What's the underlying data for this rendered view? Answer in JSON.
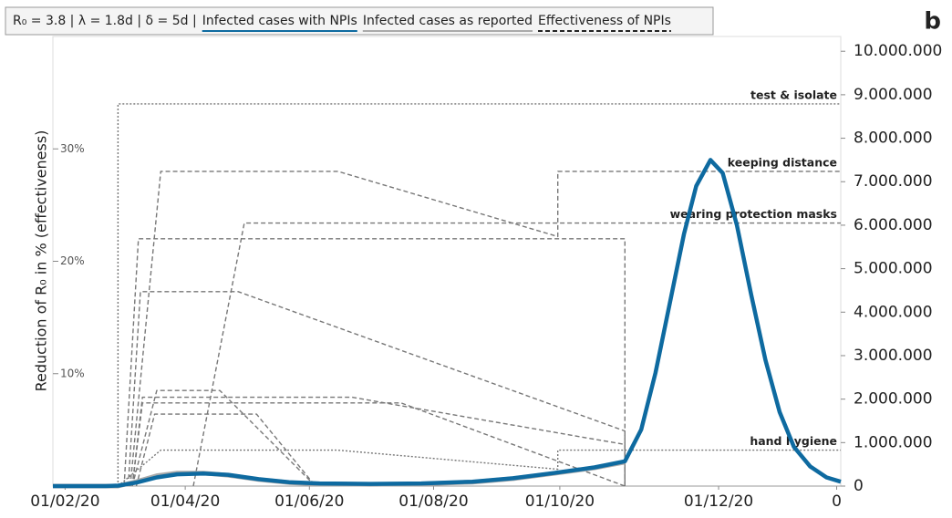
{
  "chart_data": {
    "type": "line",
    "panel_label": "b",
    "params": "R₀ = 3.8 | λ = 1.8d | δ = 5d |",
    "legend": [
      {
        "label": "Infected cases with NPIs",
        "color": "#0e6aa0",
        "dash": "solid"
      },
      {
        "label": "Infected cases as reported",
        "color": "#aaaaaa",
        "dash": "solid"
      },
      {
        "label": "Effectiveness of NPIs",
        "color": "#222222",
        "dash": "dashed"
      }
    ],
    "ylabel": "Reduction of R₀ in % (effectiveness)",
    "xlim": [
      -6,
      381
    ],
    "xticks": [
      {
        "value": 0,
        "label": "01/02/20"
      },
      {
        "value": 59,
        "label": "01/04/20"
      },
      {
        "value": 120,
        "label": "01/06/20"
      },
      {
        "value": 181,
        "label": "01/08/20"
      },
      {
        "value": 243,
        "label": "01/10/20"
      },
      {
        "value": 321,
        "label": "01/12/20"
      },
      {
        "value": 379,
        "label": "0"
      }
    ],
    "ylim": [
      0,
      40
    ],
    "yticks": [
      {
        "value": 10,
        "label": "10%"
      },
      {
        "value": 20,
        "label": "20%"
      },
      {
        "value": 30,
        "label": "30%"
      }
    ],
    "y2lim": [
      0,
      10340000
    ],
    "y2ticks": [
      0,
      {
        "value": 1000000,
        "label": "1.000.000"
      },
      {
        "value": 2000000,
        "label": "2.000.000"
      },
      {
        "value": 3000000,
        "label": "3.000.000"
      },
      {
        "value": 4000000,
        "label": "4.000.000"
      },
      {
        "value": 5000000,
        "label": "5.000.000"
      },
      {
        "value": 6000000,
        "label": "6.000.000"
      },
      {
        "value": 7000000,
        "label": "7.000.000"
      },
      {
        "value": 8000000,
        "label": "8.000.000"
      },
      {
        "value": 9000000,
        "label": "9.000.000"
      },
      {
        "value": 10000000,
        "label": "10.000.000"
      }
    ],
    "series": [
      {
        "name": "test & isolate",
        "color": "#777777",
        "dash": "dotted",
        "x": [
          26,
          26,
          381
        ],
        "values": [
          0,
          34,
          34
        ]
      },
      {
        "name": "keeping distance",
        "color": "#777777",
        "dash": "dashed",
        "x": [
          32,
          47,
          134,
          242,
          242,
          381
        ],
        "values": [
          0,
          28,
          28,
          22.2,
          28,
          28
        ]
      },
      {
        "name": "wearing protection masks",
        "color": "#777777",
        "dash": "dashed",
        "x": [
          63,
          88,
          381
        ],
        "values": [
          0,
          23.4,
          23.4
        ]
      },
      {
        "name": "hand hygiene",
        "color": "#777777",
        "dash": "dotted",
        "x": [
          26,
          47,
          134,
          242,
          242,
          381
        ],
        "values": [
          0,
          3.2,
          3.2,
          1.5,
          3.2,
          3.2
        ]
      },
      {
        "color": "#777777",
        "dash": "dashed",
        "x": [
          29,
          36,
          275,
          275
        ],
        "values": [
          0,
          22,
          22,
          0
        ]
      },
      {
        "color": "#777777",
        "dash": "dashed",
        "x": [
          31,
          37,
          85,
          275,
          275
        ],
        "values": [
          0,
          17.3,
          17.3,
          4.9,
          0
        ]
      },
      {
        "color": "#777777",
        "dash": "dashed",
        "x": [
          33,
          38,
          141,
          275,
          275
        ],
        "values": [
          0,
          7.9,
          7.9,
          3.7,
          0
        ]
      },
      {
        "color": "#777777",
        "dash": "dashed",
        "x": [
          33,
          45,
          76,
          123
        ],
        "values": [
          0,
          8.5,
          8.5,
          0
        ]
      },
      {
        "color": "#777777",
        "dash": "dashed",
        "x": [
          35,
          44,
          94,
          123
        ],
        "values": [
          0,
          6.4,
          6.4,
          0
        ]
      },
      {
        "color": "#777777",
        "dash": "dashed",
        "x": [
          33,
          38,
          165,
          275
        ],
        "values": [
          0,
          7.4,
          7.4,
          0
        ]
      },
      {
        "color": "#aaaaaa",
        "dash": "solid",
        "width": 5,
        "axis": "y2",
        "x": [
          -6,
          26,
          35,
          45,
          55,
          68,
          80,
          95,
          110,
          125,
          150,
          175,
          200,
          220,
          240,
          260,
          275
        ],
        "values": [
          0,
          0,
          100000,
          240000,
          300000,
          300000,
          250000,
          150000,
          80000,
          50000,
          40000,
          50000,
          90000,
          170000,
          290000,
          420000,
          550000
        ]
      },
      {
        "color": "#0e6aa0",
        "dash": "solid",
        "width": 4.5,
        "axis": "y2",
        "x": [
          -6,
          20,
          26,
          35,
          45,
          55,
          68,
          80,
          95,
          110,
          125,
          150,
          175,
          200,
          220,
          240,
          260,
          275,
          283,
          290,
          297,
          304,
          310,
          317,
          323,
          330,
          337,
          344,
          351,
          358,
          366,
          374,
          381
        ],
        "values": [
          0,
          0,
          10000,
          80000,
          200000,
          270000,
          290000,
          260000,
          160000,
          90000,
          60000,
          50000,
          60000,
          100000,
          180000,
          300000,
          430000,
          570000,
          1300000,
          2600000,
          4200000,
          5800000,
          6900000,
          7500000,
          7200000,
          6000000,
          4400000,
          2900000,
          1700000,
          900000,
          450000,
          200000,
          100000
        ]
      }
    ]
  }
}
